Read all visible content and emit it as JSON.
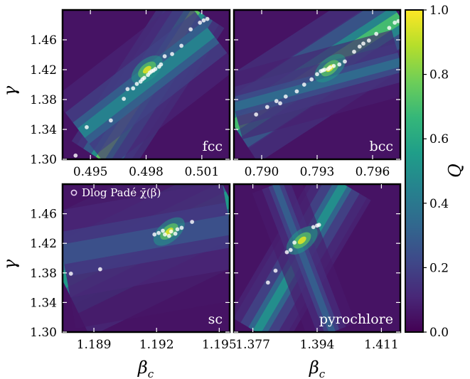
{
  "chart_data": {
    "type": "heatmap",
    "colorbar": {
      "label": "Q",
      "range": [
        0.0,
        1.0
      ],
      "ticks": [
        "0.0",
        "0.2",
        "0.4",
        "0.6",
        "0.8",
        "1.0"
      ],
      "colormap": [
        "#440154",
        "#482878",
        "#3e4989",
        "#31688e",
        "#26828e",
        "#1f9e89",
        "#35b779",
        "#6ece58",
        "#b5de2b",
        "#fde725"
      ]
    },
    "ylabel": "γ",
    "xlabel": "β",
    "xlabel_sub": "c",
    "legend": {
      "marker_label": "Dlog Padé χ̄(β)",
      "marker_color": "#e6d2f0"
    },
    "panels": [
      {
        "label": "fcc",
        "xlim": [
          0.4935,
          0.5025
        ],
        "ylim": [
          1.3,
          1.5
        ],
        "xticks": [
          "0.495",
          "0.498",
          "0.501"
        ],
        "xtick_values": [
          0.495,
          0.498,
          0.501
        ],
        "yticks": [
          "1.30",
          "1.34",
          "1.38",
          "1.42",
          "1.46"
        ],
        "ytick_values": [
          1.3,
          1.34,
          1.38,
          1.42,
          1.46
        ],
        "bands": [
          {
            "from": [
              0.4955,
              1.3
            ],
            "to": [
              0.5007,
              1.5
            ],
            "width": 0.0006,
            "peak": 0.75
          },
          {
            "from": [
              0.4945,
              1.335
            ],
            "to": [
              0.5015,
              1.47
            ],
            "width": 0.0008,
            "peak": 0.45
          }
        ],
        "center": [
          0.49805,
          1.42
        ],
        "points": [
          [
            0.4942,
            1.305
          ],
          [
            0.4948,
            1.343
          ],
          [
            0.4961,
            1.352
          ],
          [
            0.4968,
            1.381
          ],
          [
            0.497,
            1.394
          ],
          [
            0.4973,
            1.395
          ],
          [
            0.4975,
            1.401
          ],
          [
            0.4977,
            1.404
          ],
          [
            0.4978,
            1.407
          ],
          [
            0.4979,
            1.409
          ],
          [
            0.4981,
            1.413
          ],
          [
            0.4982,
            1.416
          ],
          [
            0.4983,
            1.418
          ],
          [
            0.4984,
            1.419
          ],
          [
            0.4985,
            1.421
          ],
          [
            0.4987,
            1.424
          ],
          [
            0.4988,
            1.427
          ],
          [
            0.499,
            1.438
          ],
          [
            0.4994,
            1.441
          ],
          [
            0.4999,
            1.452
          ],
          [
            0.5004,
            1.474
          ],
          [
            0.5009,
            1.483
          ],
          [
            0.5011,
            1.486
          ],
          [
            0.5013,
            1.488
          ]
        ]
      },
      {
        "label": "bcc",
        "xlim": [
          0.7885,
          0.7975
        ],
        "ylim": [
          1.3,
          1.5
        ],
        "xticks": [
          "0.790",
          "0.793",
          "0.796"
        ],
        "xtick_values": [
          0.79,
          0.793,
          0.796
        ],
        "yticks": [
          "1.30",
          "1.34",
          "1.38",
          "1.42",
          "1.46"
        ],
        "ytick_values": [
          1.3,
          1.34,
          1.38,
          1.42,
          1.46
        ],
        "bands": [
          {
            "from": [
              0.7885,
              1.345
            ],
            "to": [
              0.7975,
              1.49
            ],
            "width": 0.0008,
            "peak": 0.7
          },
          {
            "from": [
              0.7885,
              1.37
            ],
            "to": [
              0.7975,
              1.43
            ],
            "width": 0.0006,
            "peak": 0.35
          }
        ],
        "center": [
          0.7937,
          1.422
        ],
        "points": [
          [
            0.7897,
            1.36
          ],
          [
            0.7903,
            1.37
          ],
          [
            0.7908,
            1.378
          ],
          [
            0.791,
            1.375
          ],
          [
            0.7913,
            1.384
          ],
          [
            0.7919,
            1.391
          ],
          [
            0.7923,
            1.4
          ],
          [
            0.7927,
            1.407
          ],
          [
            0.793,
            1.414
          ],
          [
            0.7932,
            1.418
          ],
          [
            0.7933,
            1.419
          ],
          [
            0.7934,
            1.42
          ],
          [
            0.7936,
            1.421
          ],
          [
            0.7937,
            1.423
          ],
          [
            0.7939,
            1.425
          ],
          [
            0.7942,
            1.427
          ],
          [
            0.7945,
            1.431
          ],
          [
            0.795,
            1.444
          ],
          [
            0.7953,
            1.451
          ],
          [
            0.7955,
            1.455
          ],
          [
            0.7958,
            1.459
          ],
          [
            0.7962,
            1.468
          ],
          [
            0.7969,
            1.476
          ],
          [
            0.7972,
            1.483
          ],
          [
            0.7974,
            1.485
          ]
        ]
      },
      {
        "label": "sc",
        "xlim": [
          1.1875,
          1.1955
        ],
        "ylim": [
          1.3,
          1.5
        ],
        "xticks": [
          "1.189",
          "1.192",
          "1.195"
        ],
        "xtick_values": [
          1.189,
          1.192,
          1.195
        ],
        "yticks": [
          "1.30",
          "1.34",
          "1.38",
          "1.42",
          "1.46"
        ],
        "ytick_values": [
          1.3,
          1.34,
          1.38,
          1.42,
          1.46
        ],
        "bands": [
          {
            "from": [
              1.1875,
              1.37
            ],
            "to": [
              1.1955,
              1.48
            ],
            "width": 0.001,
            "peak": 0.55
          },
          {
            "from": [
              1.1875,
              1.405
            ],
            "to": [
              1.1955,
              1.445
            ],
            "width": 0.0012,
            "peak": 0.25
          }
        ],
        "center": [
          1.1926,
          1.436
        ],
        "points": [
          [
            1.1879,
            1.379
          ],
          [
            1.1893,
            1.385
          ],
          [
            1.1919,
            1.432
          ],
          [
            1.1921,
            1.434
          ],
          [
            1.1923,
            1.437
          ],
          [
            1.1924,
            1.432
          ],
          [
            1.1926,
            1.43
          ],
          [
            1.1927,
            1.436
          ],
          [
            1.1929,
            1.433
          ],
          [
            1.193,
            1.439
          ],
          [
            1.1932,
            1.441
          ],
          [
            1.1937,
            1.449
          ]
        ]
      },
      {
        "label": "pyrochlore",
        "xlim": [
          1.372,
          1.416
        ],
        "ylim": [
          1.3,
          1.5
        ],
        "xticks": [
          "1.377",
          "1.394",
          "1.411"
        ],
        "xtick_values": [
          1.377,
          1.394,
          1.411
        ],
        "yticks": [
          "1.30",
          "1.34",
          "1.38",
          "1.42",
          "1.46"
        ],
        "ytick_values": [
          1.3,
          1.34,
          1.38,
          1.42,
          1.46
        ],
        "bands": [
          {
            "from": [
              1.378,
              1.3
            ],
            "to": [
              1.401,
              1.5
            ],
            "width": 0.0028,
            "peak": 0.5
          },
          {
            "from": [
              1.383,
              1.5
            ],
            "to": [
              1.398,
              1.3
            ],
            "width": 0.0022,
            "peak": 0.3
          }
        ],
        "center": [
          1.39,
          1.424
        ],
        "points": [
          [
            1.381,
            1.367
          ],
          [
            1.383,
            1.383
          ],
          [
            1.386,
            1.408
          ],
          [
            1.387,
            1.411
          ],
          [
            1.388,
            1.421
          ],
          [
            1.393,
            1.442
          ],
          [
            1.394,
            1.444
          ],
          [
            1.3945,
            1.445
          ]
        ]
      }
    ]
  }
}
